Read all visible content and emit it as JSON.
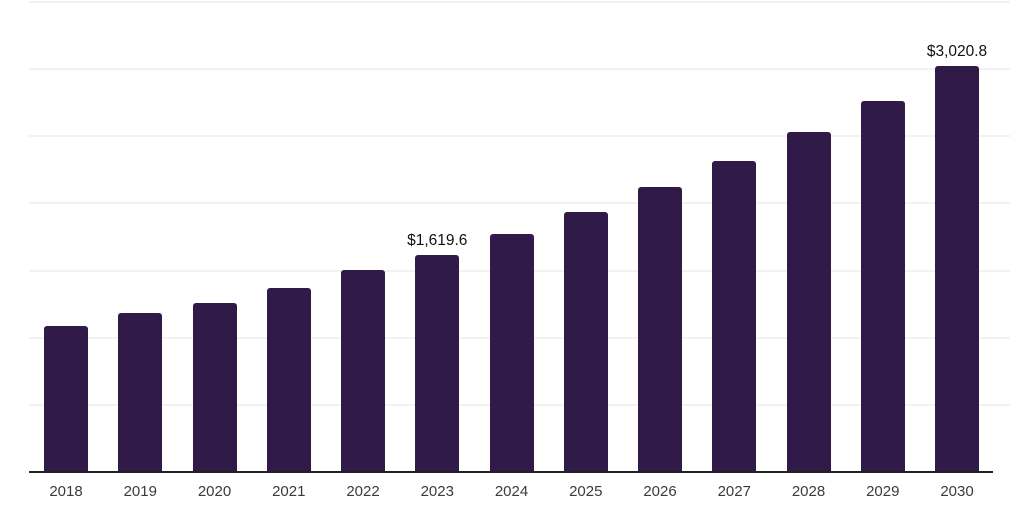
{
  "chart_data": {
    "type": "bar",
    "categories": [
      "2018",
      "2019",
      "2020",
      "2021",
      "2022",
      "2023",
      "2024",
      "2025",
      "2026",
      "2027",
      "2028",
      "2029",
      "2030"
    ],
    "values": [
      1090,
      1185,
      1260,
      1367,
      1504,
      1619.6,
      1776,
      1936,
      2125,
      2319,
      2534,
      2765,
      3020.8
    ],
    "data_labels": [
      {
        "category": "2023",
        "text": "$1,619.6"
      },
      {
        "category": "2030",
        "text": "$3,020.8"
      }
    ],
    "xlabel": "",
    "ylabel": "",
    "ylim": [
      0,
      3500
    ],
    "gridline_interval": 500,
    "grid": true,
    "y_tick_labels_visible": false,
    "legend_position": "none",
    "colors": {
      "bar": "#2f1a48",
      "gridline": "#f2f2f2",
      "axis_line": "#212121",
      "tick_label": "#3b3b3b",
      "data_label": "#111111",
      "background": "#ffffff"
    }
  }
}
